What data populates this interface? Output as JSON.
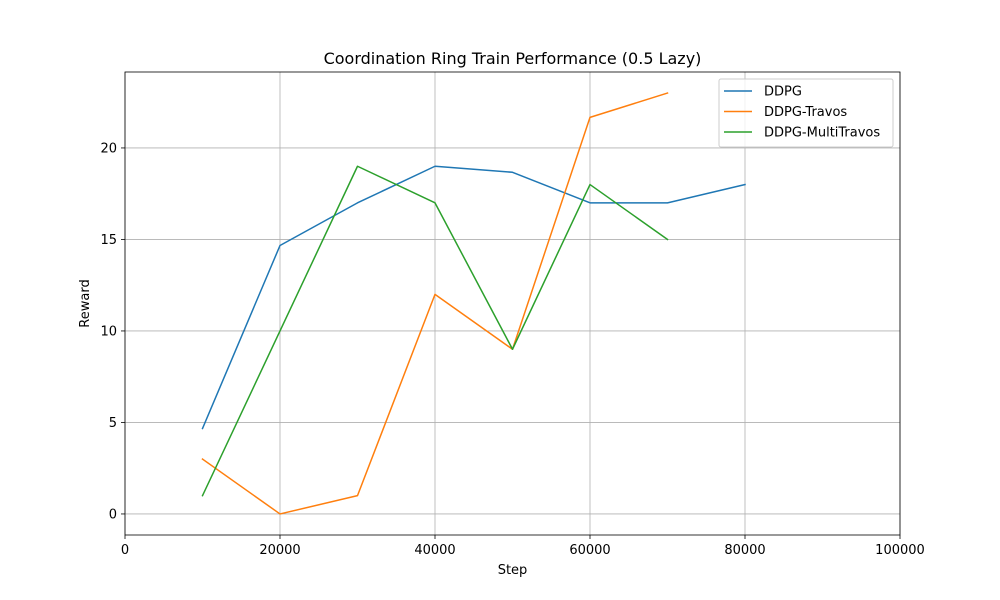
{
  "chart_data": {
    "type": "line",
    "title": "Coordination Ring Train Performance (0.5 Lazy)",
    "xlabel": "Step",
    "ylabel": "Reward",
    "xlim": [
      0,
      100000
    ],
    "ylim": [
      -1.15,
      24.15
    ],
    "xticks": [
      0,
      20000,
      40000,
      60000,
      80000,
      100000
    ],
    "xtick_labels": [
      "0",
      "20000",
      "40000",
      "60000",
      "80000",
      "100000"
    ],
    "yticks": [
      0,
      5,
      10,
      15,
      20
    ],
    "ytick_labels": [
      "0",
      "5",
      "10",
      "15",
      "20"
    ],
    "grid": true,
    "legend_position": "top-right",
    "series": [
      {
        "name": "DDPG",
        "color": "#1f77b4",
        "x": [
          10000,
          20000,
          30000,
          40000,
          50000,
          60000,
          70000,
          80000
        ],
        "y": [
          4.67,
          14.67,
          17.0,
          19.0,
          18.67,
          17.0,
          17.0,
          18.0
        ]
      },
      {
        "name": "DDPG-Travos",
        "color": "#ff7f0e",
        "x": [
          10000,
          20000,
          30000,
          40000,
          50000,
          60000,
          70000
        ],
        "y": [
          3.0,
          0.0,
          1.0,
          12.0,
          9.0,
          21.67,
          23.0
        ]
      },
      {
        "name": "DDPG-MultiTravos",
        "color": "#2ca02c",
        "x": [
          10000,
          20000,
          30000,
          40000,
          50000,
          60000,
          70000
        ],
        "y": [
          1.0,
          10.0,
          19.0,
          17.0,
          9.0,
          18.0,
          15.0
        ]
      }
    ]
  }
}
